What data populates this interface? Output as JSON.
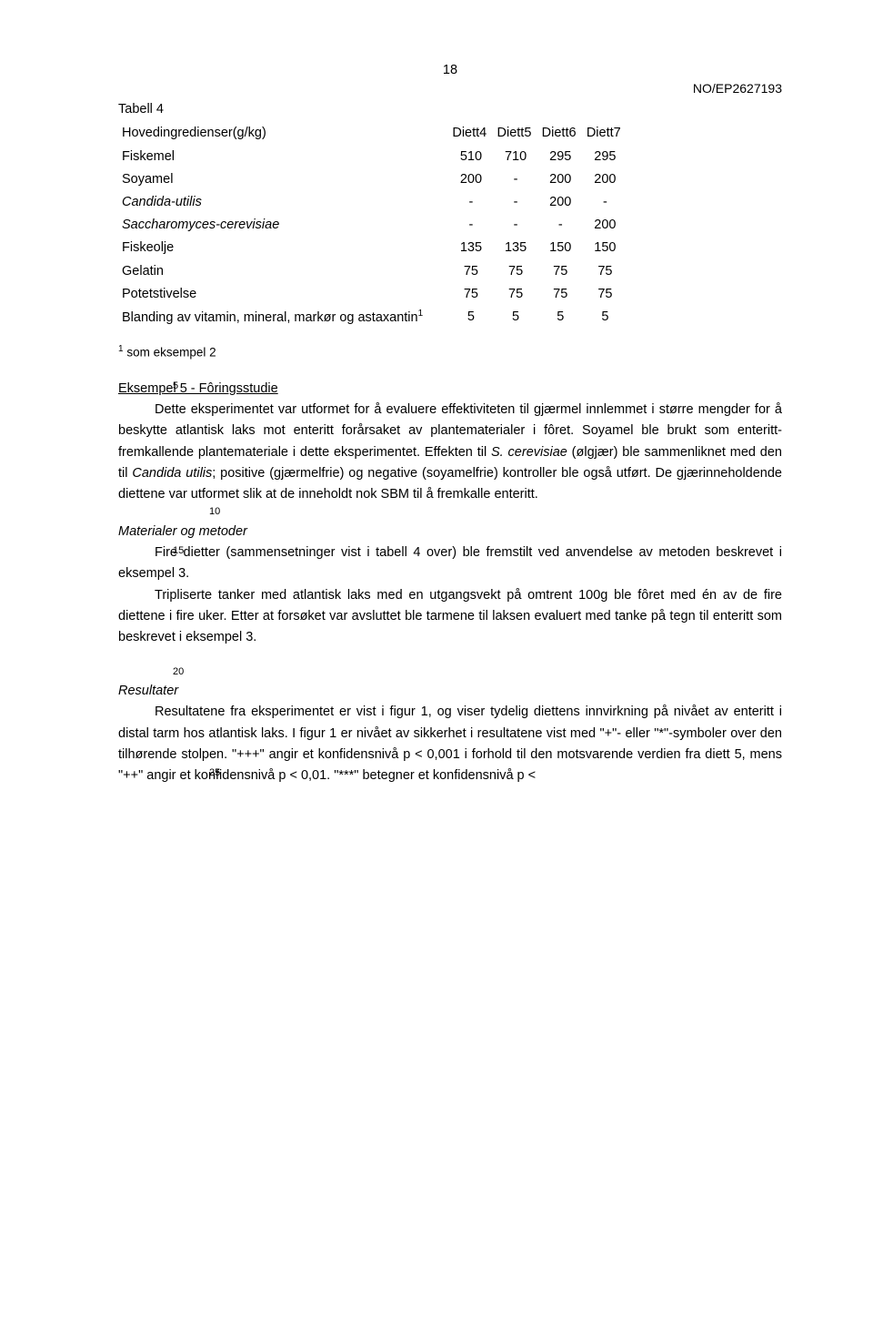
{
  "doc_id": "NO/EP2627193",
  "page_number": "18",
  "table": {
    "title": "Tabell 4",
    "headers": [
      "Hovedingredienser(g/kg)",
      "Diett4",
      "Diett5",
      "Diett6",
      "Diett7"
    ],
    "rows": [
      {
        "label": "Fiskemel",
        "italic": false,
        "vals": [
          "510",
          "710",
          "295",
          "295"
        ]
      },
      {
        "label": "Soyamel",
        "italic": false,
        "vals": [
          "200",
          "-",
          "200",
          "200"
        ]
      },
      {
        "label": "Candida-utilis",
        "italic": true,
        "vals": [
          "-",
          "-",
          "200",
          "-"
        ]
      },
      {
        "label": "Saccharomyces-cerevisiae",
        "italic": true,
        "vals": [
          "-",
          "-",
          "-",
          "200"
        ]
      },
      {
        "label": "Fiskeolje",
        "italic": false,
        "vals": [
          "135",
          "135",
          "150",
          "150"
        ]
      },
      {
        "label": "Gelatin",
        "italic": false,
        "vals": [
          "75",
          "75",
          "75",
          "75"
        ]
      },
      {
        "label": "Potetstivelse",
        "italic": false,
        "vals": [
          "75",
          "75",
          "75",
          "75"
        ]
      },
      {
        "label": "Blanding av vitamin, mineral, markør og astaxantin",
        "italic": false,
        "sup": "1",
        "vals": [
          "5",
          "5",
          "5",
          "5"
        ]
      }
    ],
    "footnote_sup": "1",
    "footnote": " som eksempel 2"
  },
  "line_numbers": {
    "ln5": "5",
    "ln10": "10",
    "ln15": "15",
    "ln20": "20",
    "ln25": "25"
  },
  "section1_heading": "Eksempel 5 - Fôringsstudie",
  "para1_a": "Dette eksperimentet var utformet for å evaluere effektiviteten til gjærmel innlemmet i større mengder for å beskytte atlantisk laks mot enteritt forårsaket av plantematerialer i fôret. Soyamel ble brukt som enteritt-fremkallende plantemateriale i dette eksperimentet. Effekten til ",
  "para1_ital1": "S. cerevisiae",
  "para1_b": " (ølgjær) ble sammenliknet med den til ",
  "para1_ital2": "Candida utilis",
  "para1_c": "; positive (gjærmelfrie) og negative (soyamelfrie) kontroller ble også utført. De gjærinneholdende diettene var utformet slik at de inneholdt nok SBM til å fremkalle enteritt.",
  "section2_heading": "Materialer og metoder",
  "para2": "Fire dietter (sammensetninger vist i tabell 4 over) ble fremstilt ved anvendelse av metoden beskrevet i eksempel 3.",
  "para3": "Tripliserte tanker med atlantisk laks med en utgangsvekt på omtrent 100g ble fôret med én av de fire diettene i fire uker. Etter at forsøket var avsluttet ble tarmene til laksen evaluert med tanke på tegn til enteritt som beskrevet i eksempel 3.",
  "section3_heading": "Resultater",
  "para4": "Resultatene fra eksperimentet er vist i figur 1, og viser tydelig diettens innvirkning på nivået av enteritt i distal tarm hos atlantisk laks. I figur 1 er nivået av sikkerhet i resultatene vist med \"+\"- eller \"*\"-symboler over den tilhørende stolpen. \"+++\" angir et konfidensnivå p < 0,001 i forhold til den motsvarende verdien fra diett 5, mens \"++\" angir et konfidensnivå p < 0,01. \"***\" betegner et konfidensnivå p <"
}
